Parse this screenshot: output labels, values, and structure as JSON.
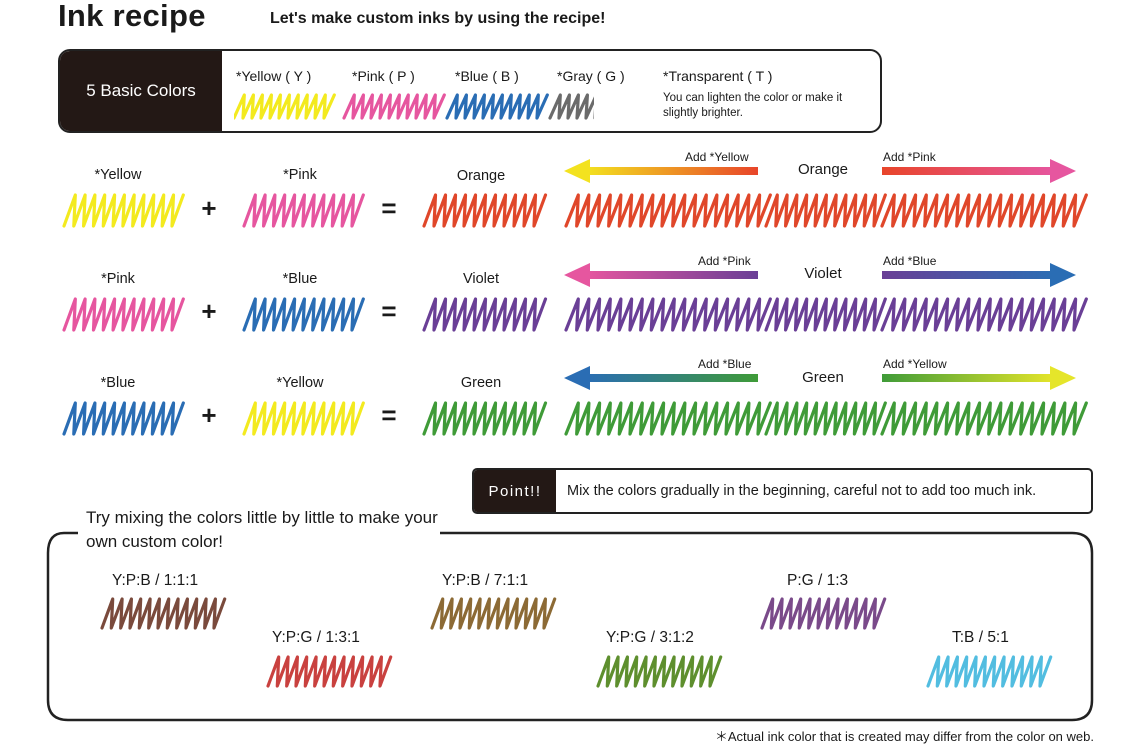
{
  "header": {
    "title": "Ink recipe",
    "subtitle": "Let's make custom inks by using the recipe!"
  },
  "basic_colors": {
    "heading": "5 Basic Colors",
    "items": [
      {
        "label": "*Yellow ( Y )",
        "color": "#f3ea1f"
      },
      {
        "label": "*Pink ( P )",
        "color": "#e6569f"
      },
      {
        "label": "*Blue ( B )",
        "color": "#2a6db4"
      },
      {
        "label": "*Gray ( G )",
        "color": "#6b6b6b"
      },
      {
        "label": "*Transparent ( T )",
        "color": "#ffffff"
      }
    ],
    "transparent_note": "You can lighten the color or make it slightly brighter."
  },
  "mixes": [
    {
      "color_a": "*Yellow",
      "color_a_hex": "#f3ea1f",
      "color_b": "*Pink",
      "color_b_hex": "#e6569f",
      "plus": "+",
      "equals": "=",
      "result": "Orange",
      "result_hex": "#e0472a",
      "left_add": "Add *Yellow",
      "left_hex": "#f3e21f",
      "right_add": "Add *Pink",
      "right_hex": "#e6569f",
      "middle": "Orange"
    },
    {
      "color_a": "*Pink",
      "color_a_hex": "#e6569f",
      "color_b": "*Blue",
      "color_b_hex": "#2a6db4",
      "plus": "+",
      "equals": "=",
      "result": "Violet",
      "result_hex": "#6a3f96",
      "left_add": "Add *Pink",
      "left_hex": "#d44fa4",
      "right_add": "Add *Blue",
      "right_hex": "#2a6db4",
      "middle": "Violet"
    },
    {
      "color_a": "*Blue",
      "color_a_hex": "#2a6db4",
      "color_b": "*Yellow",
      "color_b_hex": "#f3ea1f",
      "plus": "+",
      "equals": "=",
      "result": "Green",
      "result_hex": "#3f9b38",
      "left_add": "Add *Blue",
      "left_hex": "#2a6db4",
      "right_add": "Add *Yellow",
      "right_hex": "#e5e52a",
      "middle": "Green"
    }
  ],
  "point": {
    "label": "Point!!",
    "text": "Mix the colors gradually in the beginning, careful not to add too much ink."
  },
  "custom": {
    "title": "Try mixing the colors little by little to make your own custom color!",
    "recipes": [
      {
        "ratio": "Y:P:B / 1:1:1",
        "color": "#7a4a3c"
      },
      {
        "ratio": "Y:P:G / 1:3:1",
        "color": "#c9413f"
      },
      {
        "ratio": "Y:P:B / 7:1:1",
        "color": "#8c6a35"
      },
      {
        "ratio": "Y:P:G / 3:1:2",
        "color": "#5e8f2e"
      },
      {
        "ratio": "P:G / 1:3",
        "color": "#7a4a8a"
      },
      {
        "ratio": "T:B / 5:1",
        "color": "#52bde0"
      }
    ]
  },
  "footnote": "＊Actual ink color that is created may differ from the color on web."
}
